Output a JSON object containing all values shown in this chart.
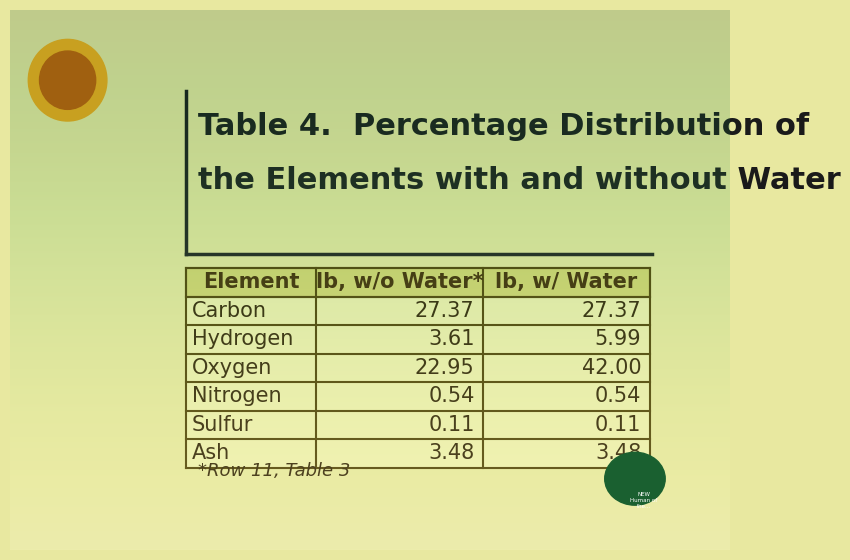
{
  "title_line1": "Table 4.  Percentage Distribution of",
  "title_line2": "the Elements with and without Water",
  "footnote": "*Row 11, Table 3",
  "col_headers": [
    "Element",
    "lb, w/o Water*",
    "lb, w/ Water"
  ],
  "rows": [
    [
      "Carbon",
      "27.37",
      "27.37"
    ],
    [
      "Hydrogen",
      "3.61",
      "5.99"
    ],
    [
      "Oxygen",
      "22.95",
      "42.00"
    ],
    [
      "Nitrogen",
      "0.54",
      "0.54"
    ],
    [
      "Sulfur",
      "0.11",
      "0.11"
    ],
    [
      "Ash",
      "3.48",
      "3.48"
    ]
  ],
  "bg_color": "#e8e8a0",
  "title_color": "#1a1a1a",
  "header_text_color": "#3b2200",
  "body_text_color": "#2a1a00",
  "table_edge_color": "#4a3a00",
  "header_bg": "#d4d470",
  "row_bg": "#f0f0b0",
  "title_fontsize": 22,
  "header_fontsize": 15,
  "body_fontsize": 15,
  "footnote_fontsize": 13,
  "accent_line_color": "#1a1a1a"
}
